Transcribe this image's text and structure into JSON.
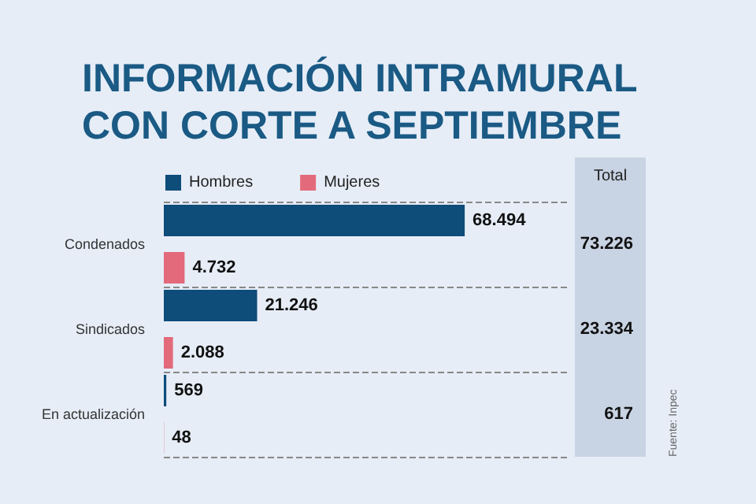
{
  "chart_data": {
    "type": "bar",
    "orientation": "horizontal",
    "title": "INFORMACIÓN INTRAMURAL\nCON CORTE A SEPTIEMBRE",
    "categories": [
      "Condenados",
      "Sindicados",
      "En actualización"
    ],
    "series": [
      {
        "name": "Hombres",
        "color": "#0e4c7a",
        "values": [
          68494,
          21246,
          569
        ],
        "value_labels": [
          "68.494",
          "21.246",
          "569"
        ]
      },
      {
        "name": "Mujeres",
        "color": "#e36a7a",
        "values": [
          4732,
          2088,
          48
        ],
        "value_labels": [
          "4.732",
          "2.088",
          "48"
        ]
      }
    ],
    "grid": "y",
    "legend": "top left",
    "annotations": [
      "Total",
      "73.226",
      "23.334",
      "617",
      "Fuente: Inpec"
    ]
  }
}
